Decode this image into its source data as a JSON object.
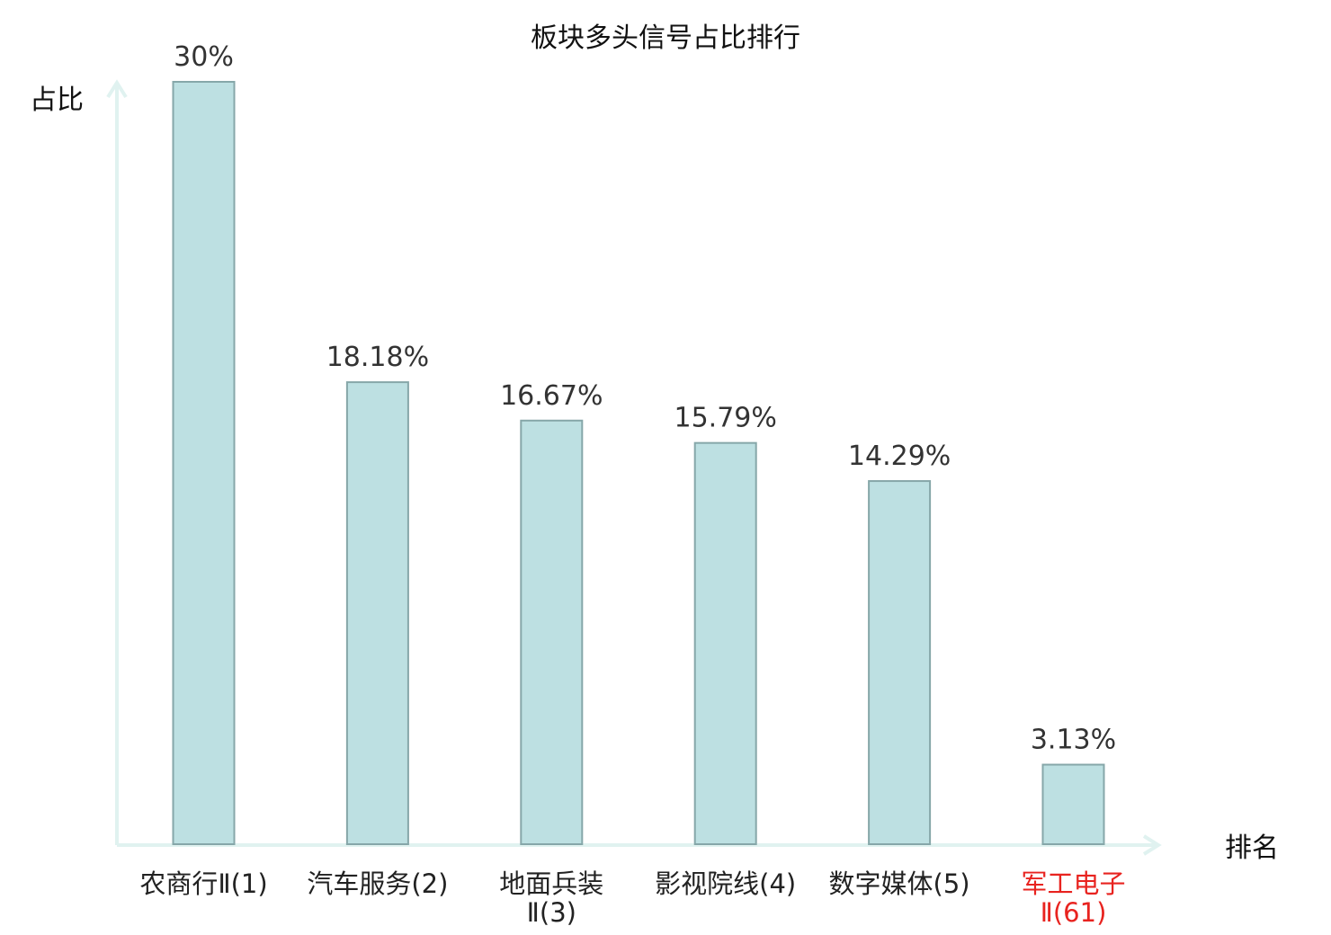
{
  "chart_data": {
    "type": "bar",
    "title": "板块多头信号占比排行",
    "ylabel": "占比",
    "xlabel": "排名",
    "ylim": [
      0,
      30
    ],
    "grid": false,
    "categories": [
      [
        "农商行Ⅱ(1)"
      ],
      [
        "汽车服务(2)"
      ],
      [
        "地面兵装",
        "Ⅱ(3)"
      ],
      [
        "影视院线(4)"
      ],
      [
        "数字媒体(5)"
      ],
      [
        "军工电子",
        "Ⅱ(61)"
      ]
    ],
    "values": [
      30,
      18.18,
      16.67,
      15.79,
      14.29,
      3.13
    ],
    "value_labels": [
      "30%",
      "18.18%",
      "16.67%",
      "15.79%",
      "14.29%",
      "3.13%"
    ],
    "highlight_index": 5,
    "colors": {
      "bar_fill": "#bde0e2",
      "bar_stroke": "#86a7a9",
      "axis": "#e0f2f0",
      "highlight_text": "#e8231f",
      "value_text": "#333333"
    }
  }
}
